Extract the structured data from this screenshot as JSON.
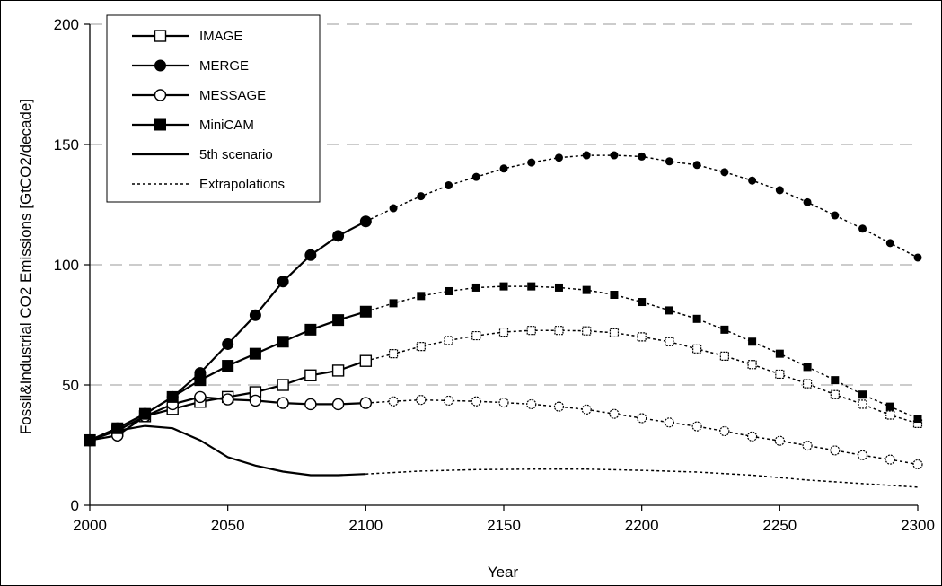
{
  "chart_data": {
    "type": "line",
    "xlabel": "Year",
    "ylabel": "Fossil&Industrial CO2 Emissions [GtCO2/decade]",
    "xlim": [
      2000,
      2300
    ],
    "ylim": [
      0,
      200
    ],
    "x_ticks": [
      "2000",
      "2050",
      "2100",
      "2150",
      "2200",
      "2250",
      "2300"
    ],
    "y_ticks": [
      "0",
      "50",
      "100",
      "150",
      "200"
    ],
    "grid": "horizontal dashed",
    "legend_position": "top-left",
    "legend_entries": [
      "IMAGE",
      "MERGE",
      "MESSAGE",
      "MiniCAM",
      "5th scenario",
      "Extrapolations"
    ],
    "series": [
      {
        "name": "IMAGE",
        "marker": "open-square",
        "x": [
          2000,
          2010,
          2020,
          2030,
          2040,
          2050,
          2060,
          2070,
          2080,
          2090,
          2100
        ],
        "y": [
          27,
          31,
          37,
          40,
          43,
          45,
          47,
          50,
          54,
          56,
          60
        ],
        "extrapolation_x": [
          2100,
          2110,
          2120,
          2130,
          2140,
          2150,
          2160,
          2170,
          2180,
          2190,
          2200,
          2210,
          2220,
          2230,
          2240,
          2250,
          2260,
          2270,
          2280,
          2290,
          2300
        ],
        "extrapolation_y": [
          60,
          63,
          66,
          68.5,
          70.5,
          72,
          72.7,
          72.7,
          72.5,
          71.7,
          70,
          68,
          65,
          62,
          58.5,
          54.5,
          50.5,
          46,
          42,
          37.5,
          34
        ]
      },
      {
        "name": "MERGE",
        "marker": "filled-circle",
        "x": [
          2000,
          2010,
          2020,
          2030,
          2040,
          2050,
          2060,
          2070,
          2080,
          2090,
          2100
        ],
        "y": [
          27,
          32,
          38,
          45,
          55,
          67,
          79,
          93,
          104,
          112,
          118
        ],
        "extrapolation_x": [
          2100,
          2110,
          2120,
          2130,
          2140,
          2150,
          2160,
          2170,
          2180,
          2190,
          2200,
          2210,
          2220,
          2230,
          2240,
          2250,
          2260,
          2270,
          2280,
          2290,
          2300
        ],
        "extrapolation_y": [
          118,
          123.5,
          128.5,
          133,
          136.5,
          140,
          142.5,
          144.5,
          145.5,
          145.5,
          145,
          143,
          141.5,
          138.5,
          135,
          131,
          126,
          120.5,
          115,
          109,
          103
        ]
      },
      {
        "name": "MESSAGE",
        "marker": "open-circle",
        "x": [
          2000,
          2010,
          2020,
          2030,
          2040,
          2050,
          2060,
          2070,
          2080,
          2090,
          2100
        ],
        "y": [
          27,
          29,
          37,
          42,
          45,
          44,
          43.5,
          42.5,
          42,
          42,
          42.5
        ],
        "extrapolation_x": [
          2100,
          2110,
          2120,
          2130,
          2140,
          2150,
          2160,
          2170,
          2180,
          2190,
          2200,
          2210,
          2220,
          2230,
          2240,
          2250,
          2260,
          2270,
          2280,
          2290,
          2300
        ],
        "extrapolation_y": [
          42.5,
          43.2,
          43.8,
          43.5,
          43.2,
          42.7,
          42,
          41,
          39.8,
          38,
          36.2,
          34.4,
          32.8,
          30.8,
          28.6,
          26.8,
          24.8,
          22.8,
          20.8,
          19,
          17
        ]
      },
      {
        "name": "MiniCAM",
        "marker": "filled-square",
        "x": [
          2000,
          2010,
          2020,
          2030,
          2040,
          2050,
          2060,
          2070,
          2080,
          2090,
          2100
        ],
        "y": [
          27,
          32,
          38,
          45,
          52,
          58,
          63,
          68,
          73,
          77,
          80.5
        ],
        "extrapolation_x": [
          2100,
          2110,
          2120,
          2130,
          2140,
          2150,
          2160,
          2170,
          2180,
          2190,
          2200,
          2210,
          2220,
          2230,
          2240,
          2250,
          2260,
          2270,
          2280,
          2290,
          2300
        ],
        "extrapolation_y": [
          80.5,
          84,
          87,
          89,
          90.5,
          91,
          91,
          90.5,
          89.5,
          87.5,
          84.5,
          81,
          77.5,
          73,
          68,
          63,
          57.5,
          52,
          46,
          41,
          36
        ]
      },
      {
        "name": "5th scenario",
        "marker": "none",
        "x": [
          2000,
          2010,
          2020,
          2030,
          2040,
          2050,
          2060,
          2070,
          2080,
          2090,
          2100
        ],
        "y": [
          27,
          31,
          33,
          32,
          27,
          20,
          16.5,
          14,
          12.5,
          12.5,
          13
        ],
        "extrapolation_x": [
          2100,
          2120,
          2140,
          2160,
          2180,
          2200,
          2220,
          2240,
          2260,
          2280,
          2300
        ],
        "extrapolation_y": [
          13,
          14.2,
          14.8,
          15,
          15,
          14.5,
          13.8,
          12.5,
          10.5,
          9,
          7.5
        ]
      }
    ]
  }
}
